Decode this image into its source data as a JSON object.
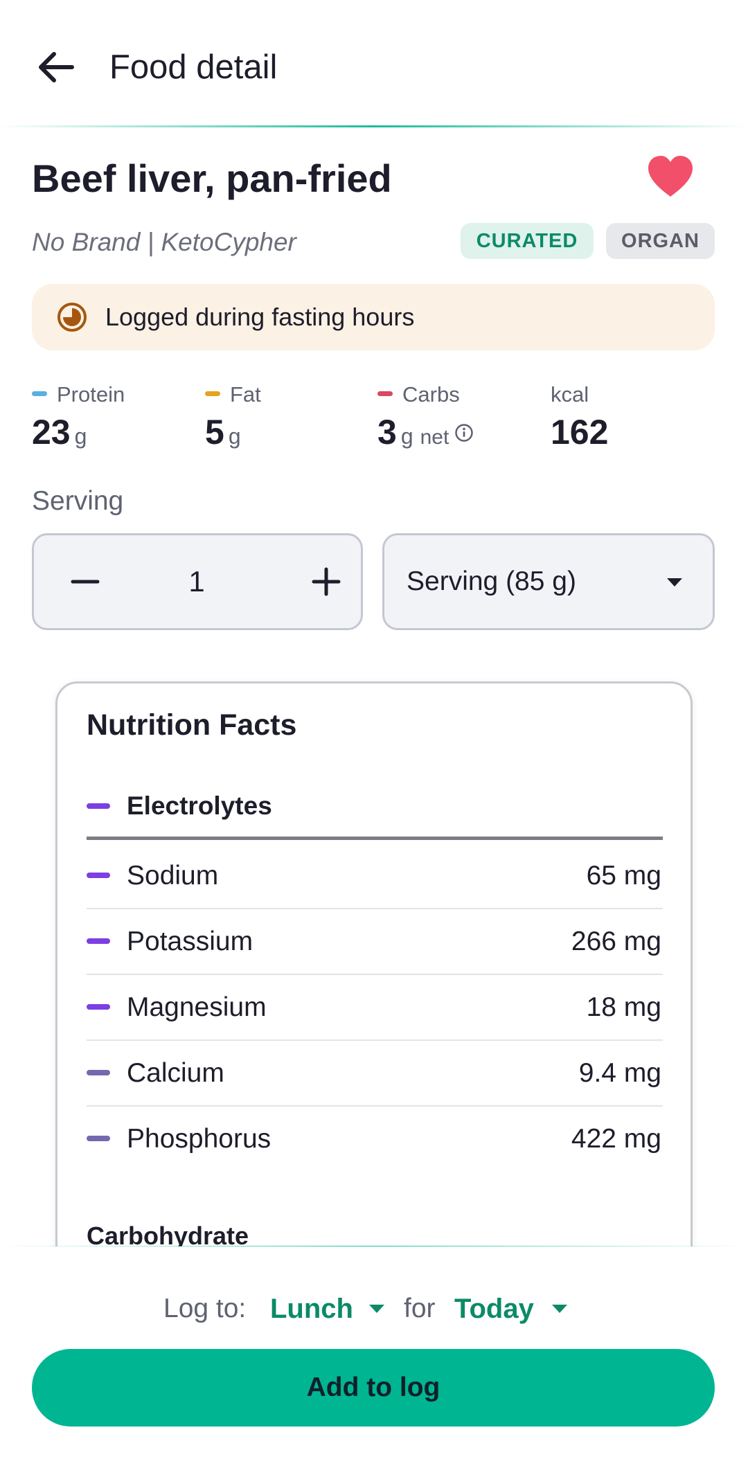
{
  "header": {
    "title": "Food detail",
    "back_icon": "arrow-left-icon"
  },
  "food": {
    "name": "Beef liver, pan-fried",
    "favorite": true,
    "brand_line": "No Brand | KetoCypher",
    "badges": [
      "CURATED",
      "ORGAN"
    ]
  },
  "notice": {
    "icon": "fasting-clock-icon",
    "text": "Logged during fasting hours"
  },
  "macros": [
    {
      "label": "Protein",
      "value": "23",
      "unit": "g",
      "color": "#5aaee0"
    },
    {
      "label": "Fat",
      "value": "5",
      "unit": "g",
      "color": "#e6a321"
    },
    {
      "label": "Carbs",
      "value": "3",
      "unit": "g",
      "suffix": "net",
      "color": "#d84a5f"
    },
    {
      "label": "kcal",
      "value": "162"
    }
  ],
  "serving": {
    "label": "Serving",
    "quantity": "1",
    "unit_selected": "Serving (85 g)"
  },
  "nutrition": {
    "title": "Nutrition Facts",
    "section": "Electrolytes",
    "rows": [
      {
        "name": "Sodium",
        "amount": "65 mg",
        "color": "#7b3fe4"
      },
      {
        "name": "Potassium",
        "amount": "266 mg",
        "color": "#7b3fe4"
      },
      {
        "name": "Magnesium",
        "amount": "18 mg",
        "color": "#7b3fe4"
      },
      {
        "name": "Calcium",
        "amount": "9.4 mg",
        "color": "#7568b0"
      },
      {
        "name": "Phosphorus",
        "amount": "422 mg",
        "color": "#7568b0"
      }
    ],
    "next_section": "Carbohydrate"
  },
  "log": {
    "label": "Log to:",
    "meal": "Lunch",
    "for_label": "for",
    "day": "Today",
    "button": "Add to log"
  },
  "colors": {
    "accent": "#00b592",
    "accent_text": "#0c8a67",
    "heart": "#f2506a"
  }
}
